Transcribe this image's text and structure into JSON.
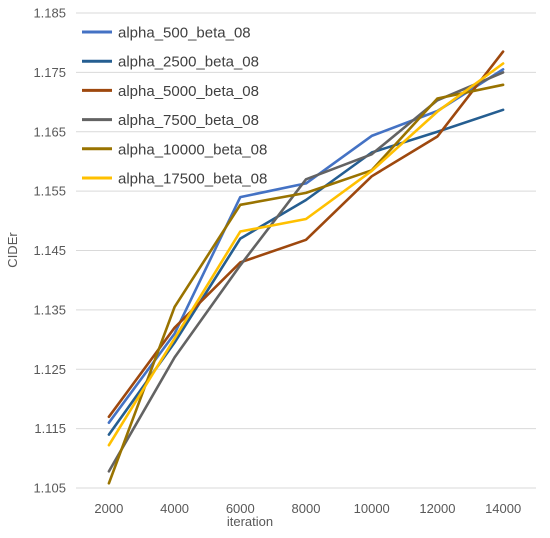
{
  "chart_data": {
    "type": "line",
    "xlabel": "iteration",
    "ylabel": "CIDEr",
    "categories": [
      "2000",
      "4000",
      "6000",
      "8000",
      "10000",
      "12000",
      "14000"
    ],
    "x": [
      2000,
      4000,
      6000,
      8000,
      10000,
      12000,
      14000
    ],
    "ylim": [
      1.105,
      1.185
    ],
    "yticks": [
      "1.105",
      "1.115",
      "1.125",
      "1.135",
      "1.145",
      "1.155",
      "1.165",
      "1.175",
      "1.185"
    ],
    "grid": "horizontal",
    "legend_position": "top-left",
    "series": [
      {
        "name": "alpha_500_beta_08",
        "color": "#4472C4",
        "values": [
          1.116,
          1.131,
          1.154,
          1.1563,
          1.1643,
          1.1685,
          1.1755
        ]
      },
      {
        "name": "alpha_2500_beta_08",
        "color": "#255E91",
        "values": [
          1.114,
          1.1295,
          1.147,
          1.1535,
          1.1615,
          1.165,
          1.1687
        ]
      },
      {
        "name": "alpha_5000_beta_08",
        "color": "#9E480E",
        "values": [
          1.117,
          1.132,
          1.143,
          1.1468,
          1.1575,
          1.1642,
          1.1785
        ]
      },
      {
        "name": "alpha_7500_beta_08",
        "color": "#636363",
        "values": [
          1.1078,
          1.127,
          1.1425,
          1.157,
          1.1612,
          1.1703,
          1.175
        ]
      },
      {
        "name": "alpha_10000_beta_08",
        "color": "#997300",
        "values": [
          1.1058,
          1.1355,
          1.1527,
          1.1547,
          1.1585,
          1.1706,
          1.1729
        ]
      },
      {
        "name": "alpha_17500_beta_08",
        "color": "#FFC000",
        "values": [
          1.1122,
          1.1302,
          1.1482,
          1.1503,
          1.1584,
          1.1684,
          1.1765
        ]
      }
    ]
  }
}
